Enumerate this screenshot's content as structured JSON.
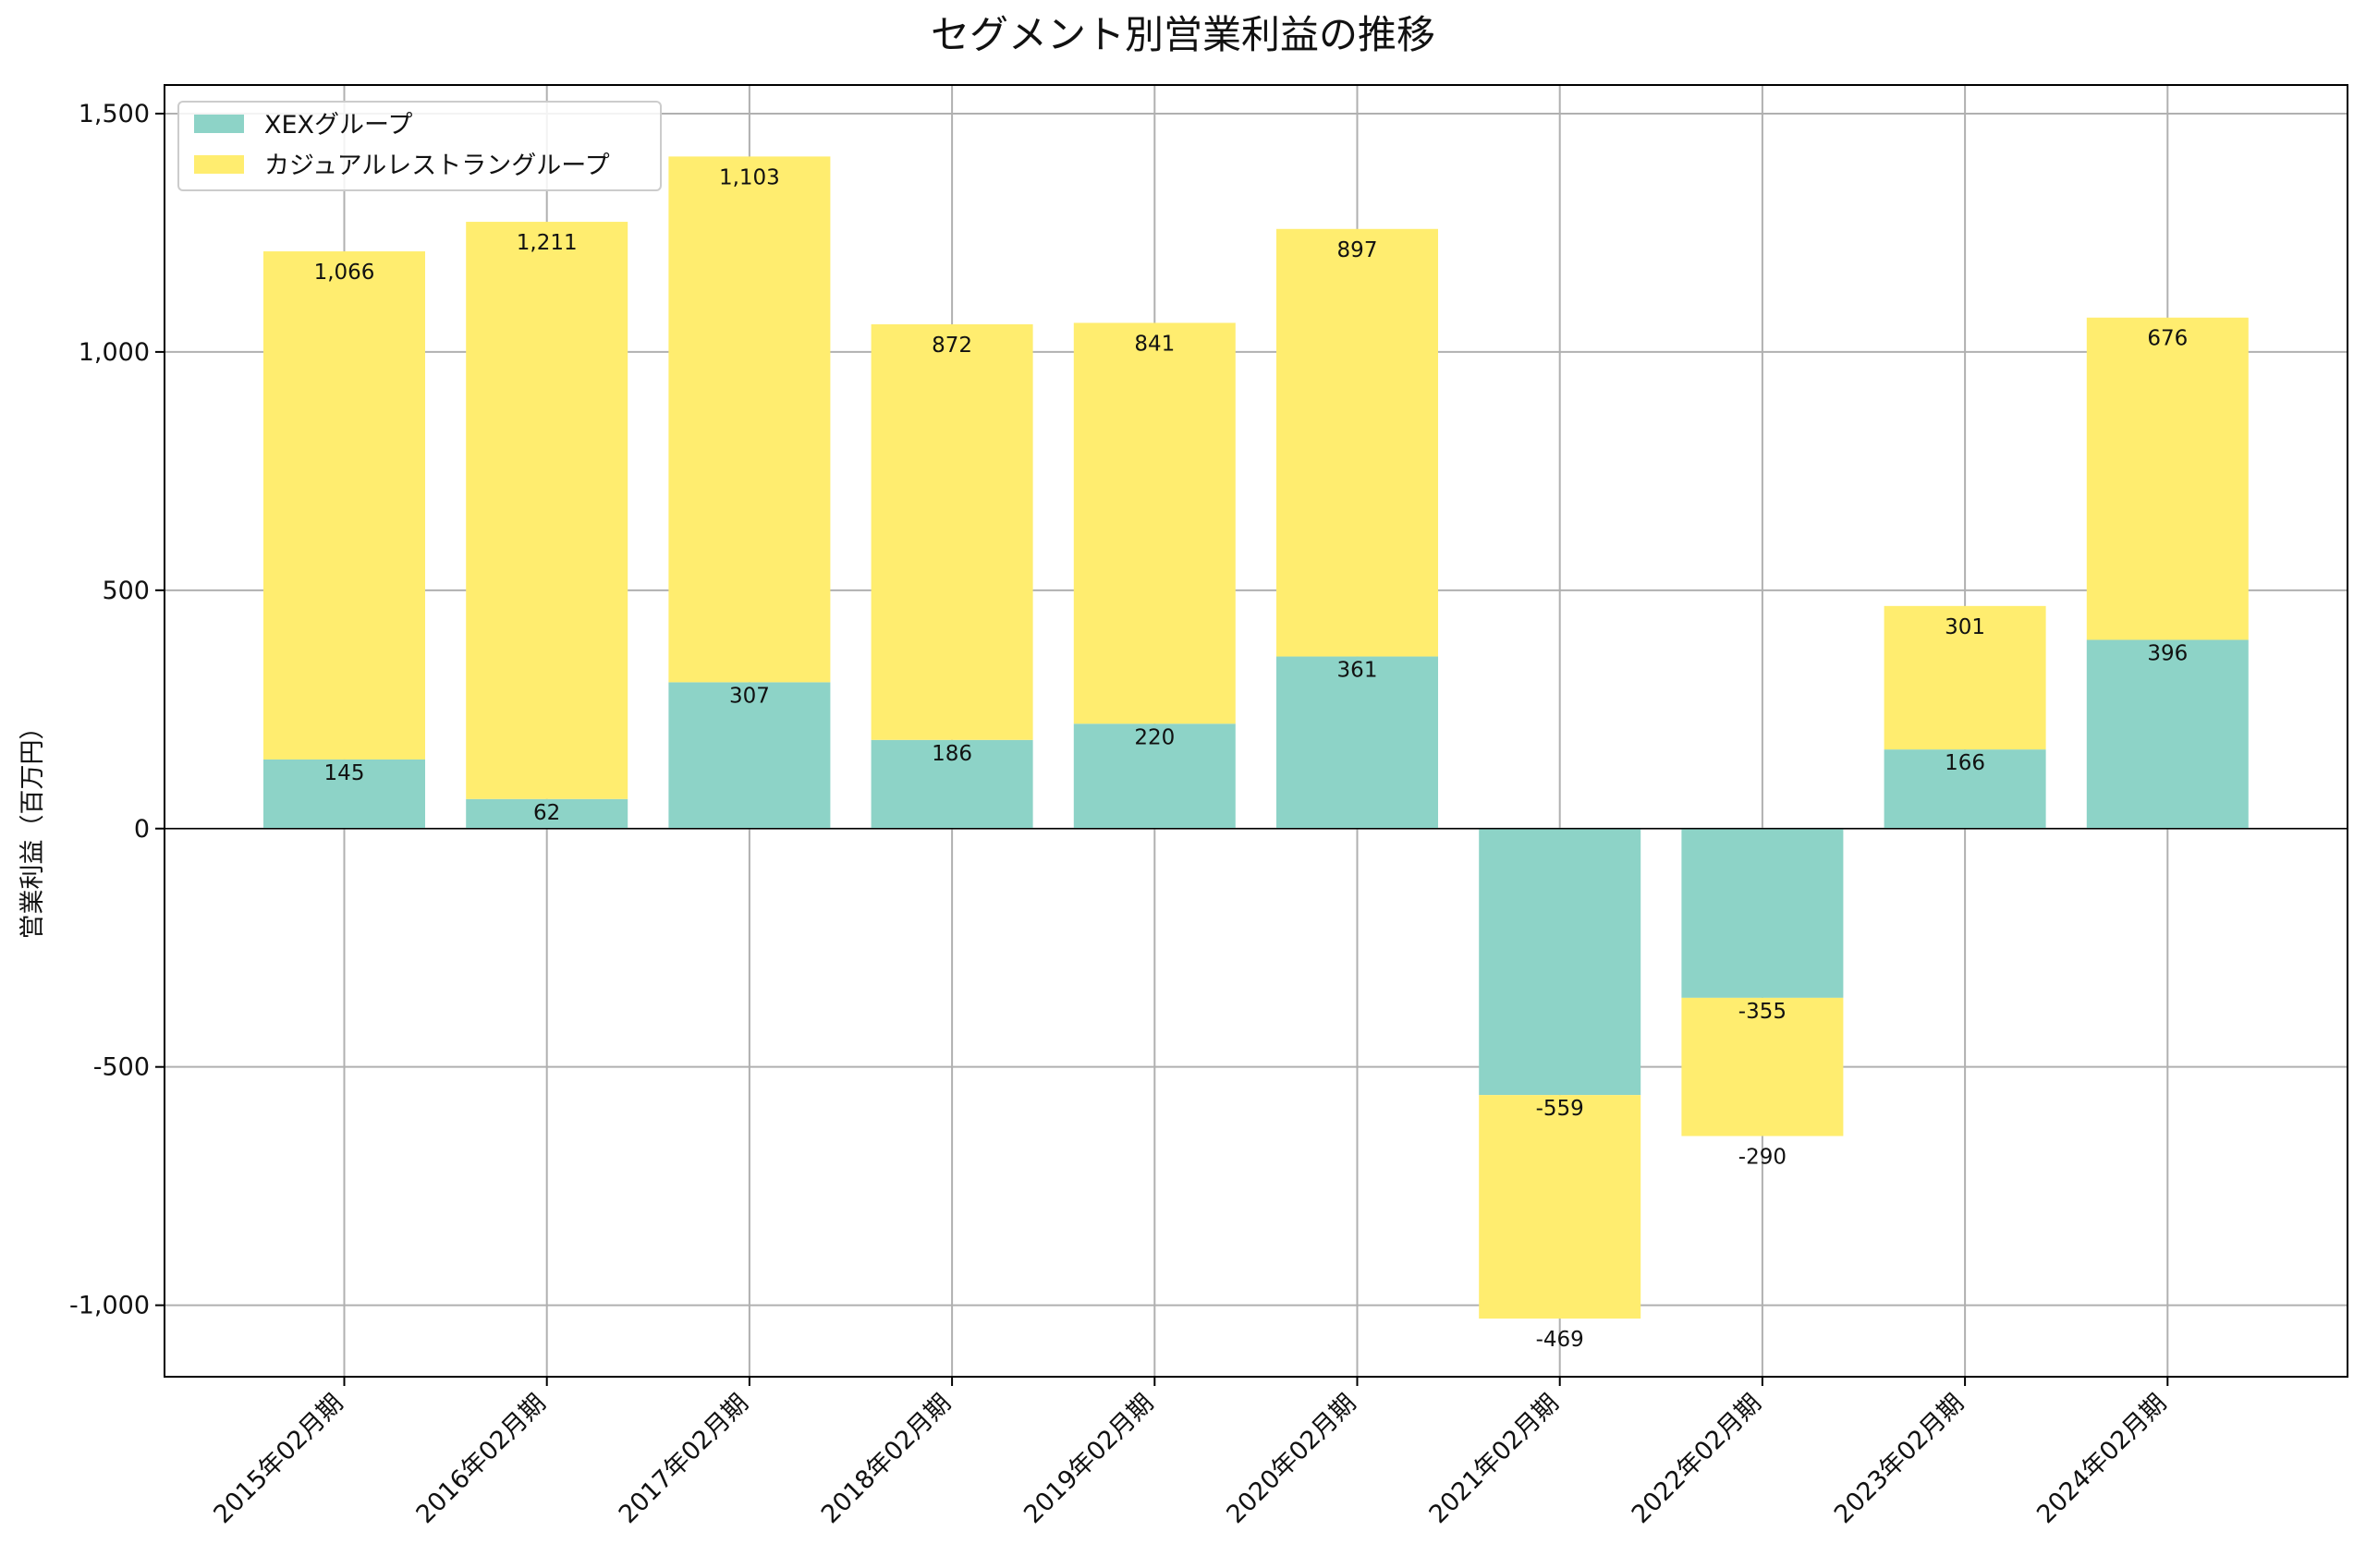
{
  "chart_data": {
    "type": "bar",
    "stacked": true,
    "title": "セグメント別営業利益の推移",
    "xlabel": "",
    "ylabel": "営業利益（百万円）",
    "ylim": [
      -1150,
      1560
    ],
    "yticks": [
      -1000,
      -500,
      0,
      500,
      1000,
      1500
    ],
    "ytick_labels": [
      "-1,000",
      "-500",
      "0",
      "500",
      "1,000",
      "1,500"
    ],
    "grid": true,
    "legend_position": "top-left",
    "categories": [
      "2015年02月期",
      "2016年02月期",
      "2017年02月期",
      "2018年02月期",
      "2019年02月期",
      "2020年02月期",
      "2021年02月期",
      "2022年02月期",
      "2023年02月期",
      "2024年02月期"
    ],
    "series": [
      {
        "name": "XEXグループ",
        "color": "#8dd3c7",
        "values": [
          145,
          62,
          307,
          186,
          220,
          361,
          -559,
          -355,
          166,
          396
        ],
        "labels": [
          "145",
          "62",
          "307",
          "186",
          "220",
          "361",
          "-559",
          "-355",
          "166",
          "396"
        ]
      },
      {
        "name": "カジュアルレストラングループ",
        "color": "#ffed6f",
        "values": [
          1066,
          1211,
          1103,
          872,
          841,
          897,
          -469,
          -290,
          301,
          676
        ],
        "labels": [
          "1,066",
          "1,211",
          "1,103",
          "872",
          "841",
          "897",
          "-469",
          "-290",
          "301",
          "676"
        ]
      }
    ]
  }
}
